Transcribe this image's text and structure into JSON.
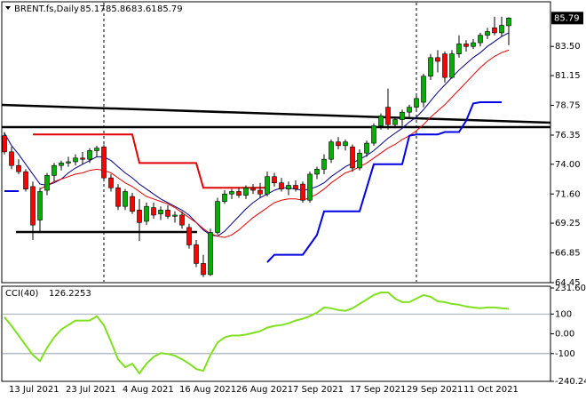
{
  "chart_data": [
    {
      "type": "candlestick",
      "title": "BRENT.fs,Daily",
      "categories": [
        null,
        "13 Jul 2021",
        null,
        null,
        null,
        null,
        null,
        null,
        null,
        "23 Jul 2021",
        null,
        null,
        null,
        null,
        null,
        null,
        null,
        "4 Aug 2021",
        null,
        null,
        null,
        null,
        null,
        null,
        null,
        "16 Aug 2021",
        null,
        null,
        null,
        null,
        null,
        null,
        null,
        "26 Aug 2021",
        null,
        null,
        null,
        null,
        null,
        null,
        null,
        "7 Sep 2021",
        null,
        null,
        null,
        null,
        null,
        null,
        null,
        "17 Sep 2021",
        null,
        null,
        null,
        null,
        null,
        null,
        null,
        "29 Sep 2021",
        null,
        null,
        null,
        null,
        null,
        null,
        null,
        "11 Oct 2021",
        null,
        null,
        null,
        null,
        null,
        null
      ],
      "ohlc": [
        [
          76.3,
          76.6,
          74.8,
          75.0
        ],
        [
          75.0,
          75.4,
          73.6,
          73.9
        ],
        [
          73.9,
          74.4,
          73.2,
          73.4
        ],
        [
          73.4,
          73.6,
          71.8,
          72.0
        ],
        [
          72.2,
          72.6,
          67.9,
          69.1
        ],
        [
          69.5,
          72.1,
          68.6,
          71.8
        ],
        [
          71.9,
          73.3,
          71.5,
          73.1
        ],
        [
          73.1,
          74.1,
          72.6,
          73.9
        ],
        [
          73.9,
          74.3,
          73.5,
          74.1
        ],
        [
          74.1,
          74.6,
          73.8,
          74.2
        ],
        [
          74.2,
          74.8,
          73.9,
          74.5
        ],
        [
          74.5,
          75.0,
          74.0,
          74.4
        ],
        [
          74.4,
          75.3,
          74.1,
          75.1
        ],
        [
          75.1,
          75.5,
          74.6,
          75.3
        ],
        [
          75.4,
          75.6,
          72.6,
          72.9
        ],
        [
          72.9,
          73.2,
          71.8,
          72.1
        ],
        [
          72.1,
          72.4,
          70.3,
          70.6
        ],
        [
          70.6,
          72.0,
          70.3,
          71.8
        ],
        [
          71.4,
          71.7,
          70.0,
          70.2
        ],
        [
          70.3,
          71.2,
          67.8,
          69.3
        ],
        [
          69.4,
          70.9,
          69.1,
          70.6
        ],
        [
          70.5,
          70.9,
          69.6,
          69.9
        ],
        [
          70.0,
          70.6,
          69.5,
          70.3
        ],
        [
          70.3,
          70.7,
          69.6,
          69.8
        ],
        [
          69.8,
          70.2,
          69.3,
          69.9
        ],
        [
          69.9,
          70.2,
          68.8,
          69.1
        ],
        [
          68.9,
          69.2,
          67.2,
          67.5
        ],
        [
          67.5,
          67.9,
          65.7,
          66.0
        ],
        [
          66.0,
          66.7,
          64.9,
          65.1
        ],
        [
          65.1,
          68.8,
          65.0,
          68.5
        ],
        [
          68.5,
          71.3,
          68.3,
          71.0
        ],
        [
          71.0,
          71.9,
          70.8,
          71.6
        ],
        [
          71.6,
          72.0,
          71.2,
          71.8
        ],
        [
          71.8,
          72.1,
          71.3,
          71.5
        ],
        [
          71.5,
          72.3,
          71.2,
          72.1
        ],
        [
          72.1,
          72.4,
          71.6,
          71.9
        ],
        [
          71.9,
          72.5,
          71.3,
          71.6
        ],
        [
          71.6,
          73.4,
          71.4,
          73.0
        ],
        [
          73.0,
          73.3,
          72.2,
          72.5
        ],
        [
          72.5,
          72.9,
          71.8,
          72.0
        ],
        [
          72.0,
          72.6,
          71.5,
          72.3
        ],
        [
          72.3,
          72.7,
          71.8,
          72.0
        ],
        [
          72.4,
          72.6,
          70.9,
          71.1
        ],
        [
          71.1,
          73.4,
          70.9,
          73.2
        ],
        [
          73.2,
          73.8,
          72.8,
          73.6
        ],
        [
          73.6,
          74.8,
          73.2,
          74.4
        ],
        [
          74.4,
          76.0,
          74.1,
          75.8
        ],
        [
          75.8,
          76.2,
          75.2,
          75.5
        ],
        [
          75.5,
          76.0,
          75.1,
          75.8
        ],
        [
          75.4,
          75.6,
          73.4,
          73.7
        ],
        [
          73.7,
          75.2,
          73.5,
          74.9
        ],
        [
          74.9,
          75.9,
          74.6,
          75.7
        ],
        [
          75.7,
          77.3,
          75.5,
          77.1
        ],
        [
          77.1,
          78.1,
          76.8,
          77.9
        ],
        [
          78.6,
          80.1,
          76.8,
          77.2
        ],
        [
          77.2,
          77.8,
          76.9,
          77.6
        ],
        [
          77.6,
          78.4,
          77.1,
          78.2
        ],
        [
          78.2,
          78.8,
          77.8,
          78.6
        ],
        [
          78.6,
          79.5,
          78.3,
          79.3
        ],
        [
          79.0,
          81.3,
          78.6,
          81.1
        ],
        [
          81.1,
          82.9,
          80.8,
          82.6
        ],
        [
          82.6,
          83.2,
          81.4,
          82.3
        ],
        [
          82.9,
          83.1,
          80.6,
          81.0
        ],
        [
          81.0,
          83.2,
          80.9,
          82.9
        ],
        [
          82.9,
          84.4,
          82.6,
          83.7
        ],
        [
          83.7,
          84.0,
          83.1,
          83.5
        ],
        [
          83.5,
          84.1,
          83.3,
          83.8
        ],
        [
          83.8,
          84.6,
          83.5,
          84.4
        ],
        [
          84.4,
          85.0,
          84.1,
          84.7
        ],
        [
          85.0,
          85.9,
          84.4,
          84.6
        ],
        [
          84.6,
          85.9,
          84.3,
          85.2
        ],
        [
          85.17,
          85.86,
          83.61,
          85.79
        ]
      ],
      "up_color": "#00b000",
      "down_color": "#ff0000",
      "series": [
        {
          "color": "#000080",
          "width": 1,
          "values": [
            76.5,
            75.5,
            74.8,
            74.0,
            73.2,
            72.4,
            72.3,
            72.5,
            72.8,
            73.3,
            73.7,
            74.0,
            74.3,
            74.6,
            74.6,
            74.3,
            73.8,
            73.3,
            72.9,
            72.4,
            72.0,
            71.6,
            71.2,
            70.9,
            70.6,
            70.3,
            69.9,
            69.3,
            68.7,
            68.3,
            68.2,
            68.6,
            69.2,
            69.8,
            70.4,
            70.9,
            71.3,
            71.6,
            71.9,
            72.1,
            72.1,
            72.0,
            71.9,
            72.0,
            72.2,
            72.5,
            73.0,
            73.4,
            73.8,
            74.1,
            74.4,
            74.7,
            75.1,
            75.6,
            76.1,
            76.5,
            76.9,
            77.4,
            77.8,
            78.4,
            79.1,
            79.8,
            80.4,
            81.0,
            81.6,
            82.1,
            82.6,
            83.0,
            83.5,
            83.9,
            84.3,
            84.6
          ]
        },
        {
          "color": "#e00000",
          "width": 1,
          "values": [
            null,
            null,
            null,
            null,
            null,
            72.0,
            72.3,
            72.6,
            72.8,
            73.0,
            73.2,
            73.3,
            73.5,
            73.6,
            73.5,
            73.3,
            72.9,
            72.5,
            72.2,
            71.8,
            71.4,
            71.2,
            71.0,
            70.8,
            70.5,
            70.1,
            69.7,
            69.3,
            68.8,
            68.4,
            68.2,
            68.1,
            68.3,
            68.7,
            69.2,
            69.7,
            70.1,
            70.5,
            70.9,
            71.1,
            71.2,
            71.2,
            71.1,
            71.3,
            71.6,
            72.0,
            72.5,
            72.9,
            73.3,
            73.5,
            73.8,
            74.1,
            74.5,
            74.9,
            75.3,
            75.6,
            76.0,
            76.3,
            76.7,
            77.2,
            77.8,
            78.3,
            78.8,
            79.4,
            80.0,
            80.6,
            81.2,
            81.8,
            82.3,
            82.7,
            83.0,
            83.2
          ]
        },
        {
          "color": "#0000e0",
          "width": 2,
          "values": [
            71.83,
            71.83,
            71.83,
            null,
            null,
            null,
            null,
            null,
            null,
            null,
            null,
            null,
            null,
            null,
            null,
            null,
            null,
            null,
            null,
            null,
            null,
            null,
            null,
            null,
            null,
            null,
            null,
            null,
            null,
            null,
            null,
            null,
            null,
            null,
            null,
            null,
            null,
            66.1,
            66.7,
            66.7,
            66.7,
            66.7,
            66.7,
            67.5,
            68.3,
            70.2,
            70.2,
            70.2,
            70.2,
            70.2,
            70.2,
            72.1,
            74.0,
            74.0,
            74.0,
            74.0,
            74.0,
            76.3,
            76.4,
            76.4,
            76.4,
            76.4,
            76.6,
            76.6,
            76.6,
            77.5,
            78.9,
            79.0,
            79.0,
            79.0,
            79.0,
            null
          ]
        },
        {
          "color": "#e00000",
          "width": 2,
          "values": [
            null,
            null,
            null,
            null,
            76.4,
            76.4,
            76.4,
            76.4,
            76.4,
            76.4,
            76.4,
            76.4,
            76.4,
            76.4,
            76.4,
            76.4,
            76.4,
            76.4,
            76.4,
            74.1,
            74.1,
            74.1,
            74.1,
            74.1,
            74.1,
            74.1,
            74.1,
            74.1,
            72.1,
            72.1,
            72.1,
            72.1,
            72.1,
            72.1,
            72.1,
            72.1,
            72.1,
            72.1,
            null,
            null,
            null,
            null,
            null,
            null,
            null,
            null,
            null,
            null,
            null,
            null,
            null,
            null,
            null,
            null,
            null,
            null,
            null,
            null,
            null,
            null,
            null,
            null,
            null,
            null,
            null,
            null,
            null,
            null,
            null,
            null,
            null,
            null
          ]
        }
      ],
      "ylim": [
        64.45,
        87.03
      ],
      "yticks": [
        64.45,
        66.85,
        69.25,
        {
          "value": 71.6,
          "label": "71.60"
        },
        {
          "value": 74,
          "label": "74.00"
        },
        76.35,
        78.75,
        81.15,
        {
          "value": 83.5,
          "label": "83.50"
        }
      ]
    },
    {
      "type": "line",
      "title": "CCI(40)",
      "color": "#80e020",
      "values": [
        84,
        40,
        -9,
        -58,
        -107,
        -138,
        -71,
        -18,
        22,
        44,
        67,
        67,
        67,
        89,
        44,
        -40,
        -129,
        -169,
        -151,
        -200,
        -151,
        -116,
        -98,
        -102,
        -111,
        -129,
        -151,
        -178,
        -187,
        -107,
        -44,
        -18,
        -9,
        -9,
        -4,
        4,
        13,
        31,
        40,
        44,
        53,
        67,
        76,
        89,
        107,
        133,
        129,
        120,
        116,
        129,
        151,
        173,
        196,
        209,
        209,
        178,
        160,
        160,
        178,
        196,
        187,
        164,
        160,
        151,
        147,
        138,
        133,
        129,
        133,
        133,
        129,
        126.2253
      ],
      "ylim": [
        -240.24,
        231.601
      ],
      "yticks": [
        {
          "value": 231.601,
          "label": "231.601"
        },
        100,
        {
          "value": 0,
          "label": "0.00"
        },
        -100,
        {
          "value": -240.24,
          "label": "-240.240"
        }
      ],
      "levels": [
        100,
        -100
      ]
    }
  ]
}
